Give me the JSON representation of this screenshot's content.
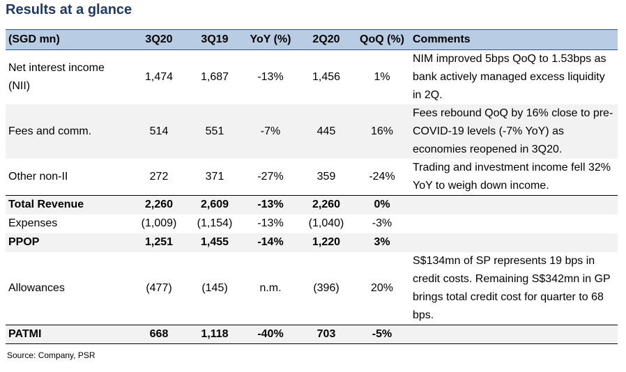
{
  "title": "Results at a glance",
  "headers": [
    "(SGD mn)",
    "3Q20",
    "3Q19",
    "YoY (%)",
    "2Q20",
    "QoQ (%)",
    "Comments"
  ],
  "rows": [
    {
      "label": "Net interest income (NII)",
      "q3_20": "1,474",
      "q3_19": "1,687",
      "yoy": "-13%",
      "q2_20": "1,456",
      "qoq": "1%",
      "comment": "NIM improved 5bps QoQ to 1.53bps as bank actively managed excess liquidity in 2Q."
    },
    {
      "label": "Fees and comm.",
      "q3_20": "514",
      "q3_19": "551",
      "yoy": "-7%",
      "q2_20": "445",
      "qoq": "16%",
      "comment": "Fees rebound QoQ by 16% close to pre-COVID-19 levels (-7% YoY) as economies reopened in 3Q20."
    },
    {
      "label": "Other non-II",
      "q3_20": "272",
      "q3_19": "371",
      "yoy": "-27%",
      "q2_20": "359",
      "qoq": "-24%",
      "comment": "Trading and investment income fell 32% YoY to weigh down income."
    },
    {
      "label": "Total Revenue",
      "q3_20": "2,260",
      "q3_19": "2,609",
      "yoy": "-13%",
      "q2_20": "2,260",
      "qoq": "0%",
      "comment": ""
    },
    {
      "label": "Expenses",
      "q3_20": "(1,009)",
      "q3_19": "(1,154)",
      "yoy": "-13%",
      "q2_20": "(1,040)",
      "qoq": "-3%",
      "comment": ""
    },
    {
      "label": "PPOP",
      "q3_20": "1,251",
      "q3_19": "1,455",
      "yoy": "-14%",
      "q2_20": "1,220",
      "qoq": "3%",
      "comment": ""
    },
    {
      "label": "Allowances",
      "q3_20": "(477)",
      "q3_19": "(145)",
      "yoy": "n.m.",
      "q2_20": "(396)",
      "qoq": "20%",
      "comment": "S$134mn of SP represents 19 bps in credit costs. Remaining S$342mn in GP brings total credit cost for quarter to 68 bps."
    },
    {
      "label": "PATMI",
      "q3_20": "668",
      "q3_19": "1,118",
      "yoy": "-40%",
      "q2_20": "703",
      "qoq": "-5%",
      "comment": ""
    }
  ],
  "source": "Source: Company, PSR"
}
